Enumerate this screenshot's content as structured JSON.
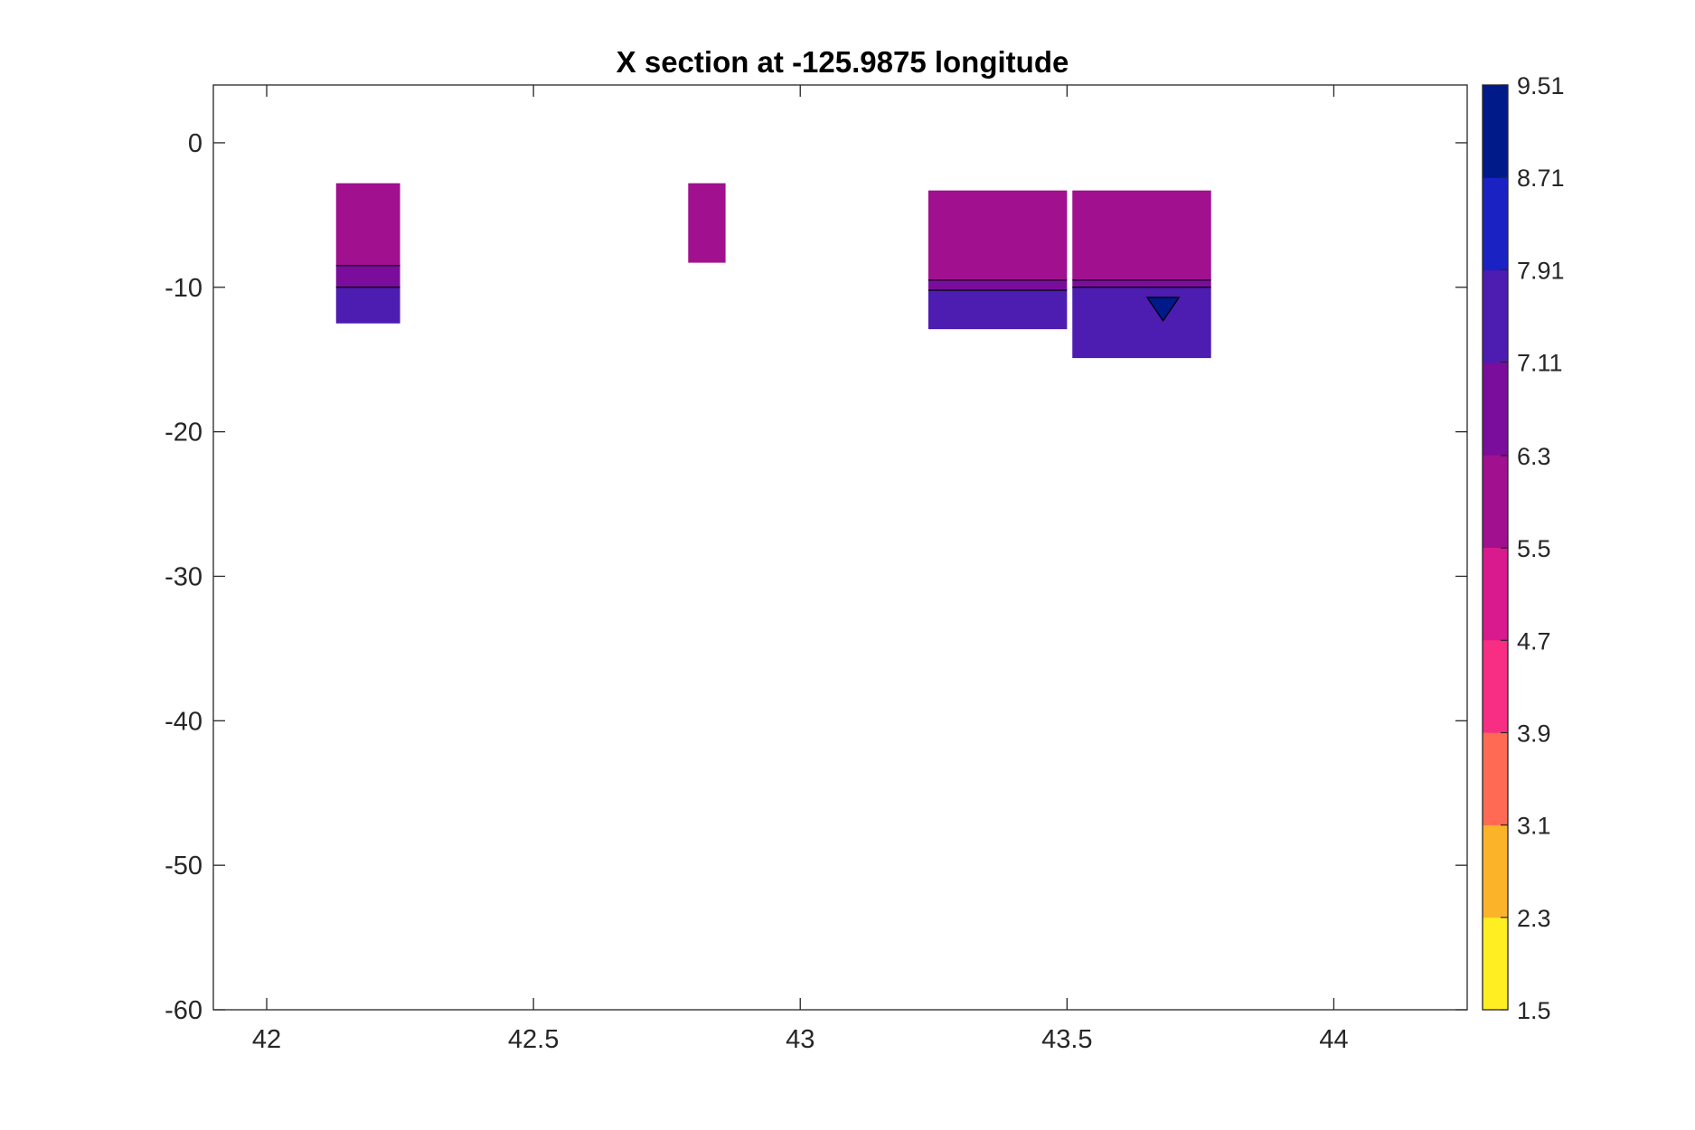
{
  "chart_data": {
    "type": "heatmap",
    "subtype": "filled-contour cross-section",
    "title": "X section at -125.9875 longitude",
    "xlabel": "",
    "ylabel": "",
    "xlim": [
      41.9,
      44.25
    ],
    "ylim": [
      -60,
      4
    ],
    "x_ticks": [
      42,
      42.5,
      43,
      43.5,
      44
    ],
    "x_tick_labels": [
      "42",
      "42.5",
      "43",
      "43.5",
      "44"
    ],
    "y_ticks": [
      0,
      -10,
      -20,
      -30,
      -40,
      -50,
      -60
    ],
    "y_tick_labels": [
      "0",
      "-10",
      "-20",
      "-30",
      "-40",
      "-50",
      "-60"
    ],
    "grid": false,
    "colorbar": {
      "min": 1.5,
      "max": 9.51,
      "ticks": [
        9.51,
        8.71,
        7.91,
        7.11,
        6.3,
        5.5,
        4.7,
        3.9,
        3.1,
        2.3,
        1.5
      ],
      "tick_labels": [
        "9.51",
        "8.71",
        "7.91",
        "7.11",
        "6.3",
        "5.5",
        "4.7",
        "3.9",
        "3.1",
        "2.3",
        "1.5"
      ],
      "colormap": "plasma-like",
      "colors": [
        "#ffee22",
        "#fbb42a",
        "#ff6a55",
        "#f72e84",
        "#d81a8e",
        "#a0108f",
        "#7a0d9c",
        "#4d1cb0",
        "#1b22c4",
        "#001a8a"
      ]
    },
    "regions": [
      {
        "name": "region-42.2",
        "x_range": [
          42.13,
          42.25
        ],
        "y_range": [
          -12.5,
          -2.8
        ],
        "bands": [
          {
            "y_top": -2.8,
            "y_bottom": -8.5,
            "value": 5.8
          },
          {
            "y_top": -8.5,
            "y_bottom": -10.0,
            "value": 6.9
          },
          {
            "y_top": -10.0,
            "y_bottom": -12.5,
            "value": 7.6
          }
        ]
      },
      {
        "name": "region-42.8",
        "x_range": [
          42.79,
          42.86
        ],
        "y_range": [
          -8.3,
          -2.8
        ],
        "bands": [
          {
            "y_top": -2.8,
            "y_bottom": -8.3,
            "value": 6.0
          }
        ]
      },
      {
        "name": "region-43.35",
        "x_range": [
          43.24,
          43.5
        ],
        "y_range": [
          -12.9,
          -3.3
        ],
        "bands": [
          {
            "y_top": -3.3,
            "y_bottom": -9.5,
            "value": 5.9
          },
          {
            "y_top": -9.5,
            "y_bottom": -10.2,
            "value": 6.8
          },
          {
            "y_top": -10.2,
            "y_bottom": -12.9,
            "value": 7.5
          }
        ]
      },
      {
        "name": "region-43.65",
        "x_range": [
          43.51,
          43.77
        ],
        "y_range": [
          -14.9,
          -3.3
        ],
        "bands": [
          {
            "y_top": -3.3,
            "y_bottom": -9.5,
            "value": 6.2
          },
          {
            "y_top": -9.5,
            "y_bottom": -10.0,
            "value": 7.1
          },
          {
            "y_top": -10.0,
            "y_bottom": -14.9,
            "value": 7.9
          }
        ],
        "max_cell": {
          "x": 43.68,
          "y": -11.2,
          "value": 8.9
        }
      }
    ]
  }
}
